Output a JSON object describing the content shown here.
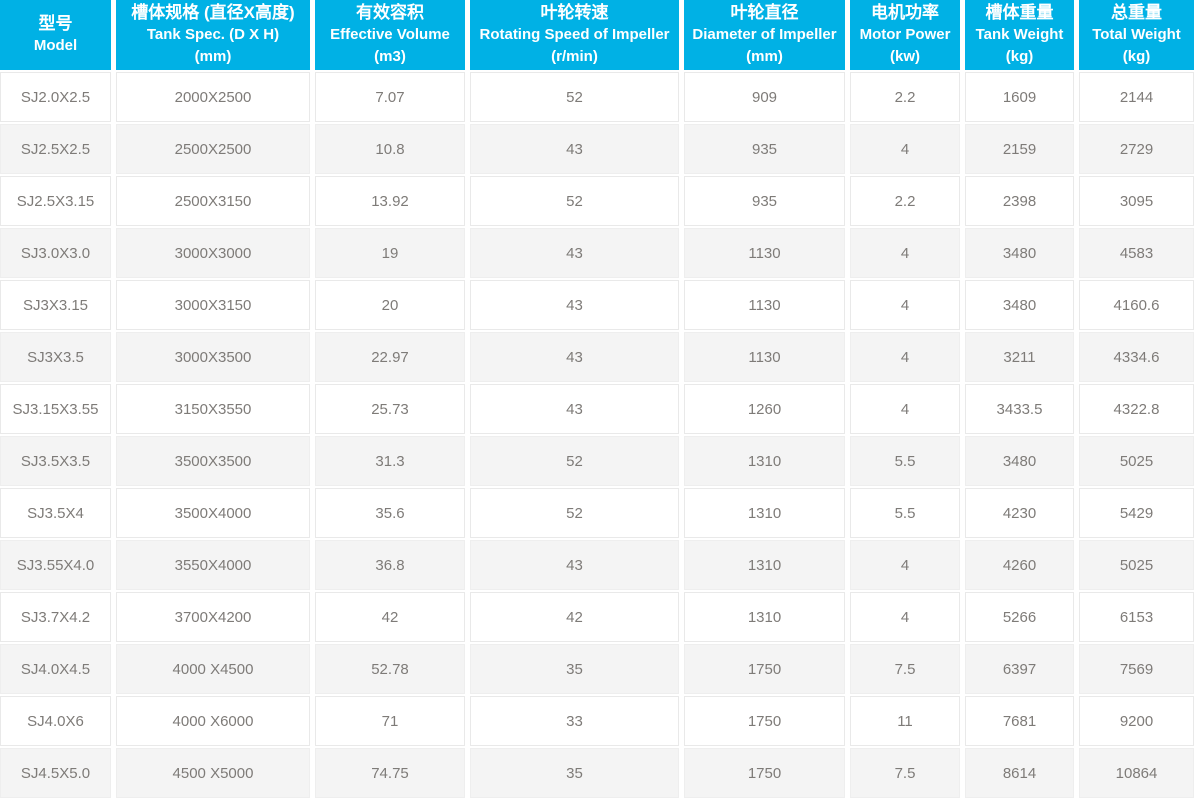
{
  "table": {
    "columns": [
      {
        "zh": "型号",
        "en": "Model",
        "unit": ""
      },
      {
        "zh": "槽体规格 (直径X高度)",
        "en": "Tank Spec. (D X H)",
        "unit": "(mm)"
      },
      {
        "zh": "有效容积",
        "en": "Effective Volume",
        "unit": "(m3)"
      },
      {
        "zh": "叶轮转速",
        "en": "Rotating Speed of Impeller",
        "unit": "(r/min)"
      },
      {
        "zh": "叶轮直径",
        "en": "Diameter of Impeller",
        "unit": "(mm)"
      },
      {
        "zh": "电机功率",
        "en": "Motor Power",
        "unit": "(kw)"
      },
      {
        "zh": "槽体重量",
        "en": "Tank Weight",
        "unit": "(kg)"
      },
      {
        "zh": "总重量",
        "en": "Total Weight",
        "unit": "(kg)"
      }
    ],
    "column_keys": [
      "model",
      "tank-spec",
      "effective-volume",
      "rotating-speed",
      "impeller-diameter",
      "motor-power",
      "tank-weight",
      "total-weight"
    ],
    "rows": [
      [
        "SJ2.0X2.5",
        "2000X2500",
        "7.07",
        "52",
        "909",
        "2.2",
        "1609",
        "2144"
      ],
      [
        "SJ2.5X2.5",
        "2500X2500",
        "10.8",
        "43",
        "935",
        "4",
        "2159",
        "2729"
      ],
      [
        "SJ2.5X3.15",
        "2500X3150",
        "13.92",
        "52",
        "935",
        "2.2",
        "2398",
        "3095"
      ],
      [
        "SJ3.0X3.0",
        "3000X3000",
        "19",
        "43",
        "1130",
        "4",
        "3480",
        "4583"
      ],
      [
        "SJ3X3.15",
        "3000X3150",
        "20",
        "43",
        "1130",
        "4",
        "3480",
        "4160.6"
      ],
      [
        "SJ3X3.5",
        "3000X3500",
        "22.97",
        "43",
        "1130",
        "4",
        "3211",
        "4334.6"
      ],
      [
        "SJ3.15X3.55",
        "3150X3550",
        "25.73",
        "43",
        "1260",
        "4",
        "3433.5",
        "4322.8"
      ],
      [
        "SJ3.5X3.5",
        "3500X3500",
        "31.3",
        "52",
        "1310",
        "5.5",
        "3480",
        "5025"
      ],
      [
        "SJ3.5X4",
        "3500X4000",
        "35.6",
        "52",
        "1310",
        "5.5",
        "4230",
        "5429"
      ],
      [
        "SJ3.55X4.0",
        "3550X4000",
        "36.8",
        "43",
        "1310",
        "4",
        "4260",
        "5025"
      ],
      [
        "SJ3.7X4.2",
        "3700X4200",
        "42",
        "42",
        "1310",
        "4",
        "5266",
        "6153"
      ],
      [
        "SJ4.0X4.5",
        "4000 X4500",
        "52.78",
        "35",
        "1750",
        "7.5",
        "6397",
        "7569"
      ],
      [
        "SJ4.0X6",
        "4000 X6000",
        "71",
        "33",
        "1750",
        "11",
        "7681",
        "9200"
      ],
      [
        "SJ4.5X5.0",
        "4500 X5000",
        "74.75",
        "35",
        "1750",
        "7.5",
        "8614",
        "10864"
      ]
    ],
    "colors": {
      "header_bg": "#00b1e5",
      "header_text": "#ffffff",
      "row_bg": "#ffffff",
      "row_alt_bg": "#f4f4f4",
      "cell_border": "#e9e9e9",
      "cell_border_alt": "#eeeeee",
      "body_text": "#7e7b78"
    }
  }
}
